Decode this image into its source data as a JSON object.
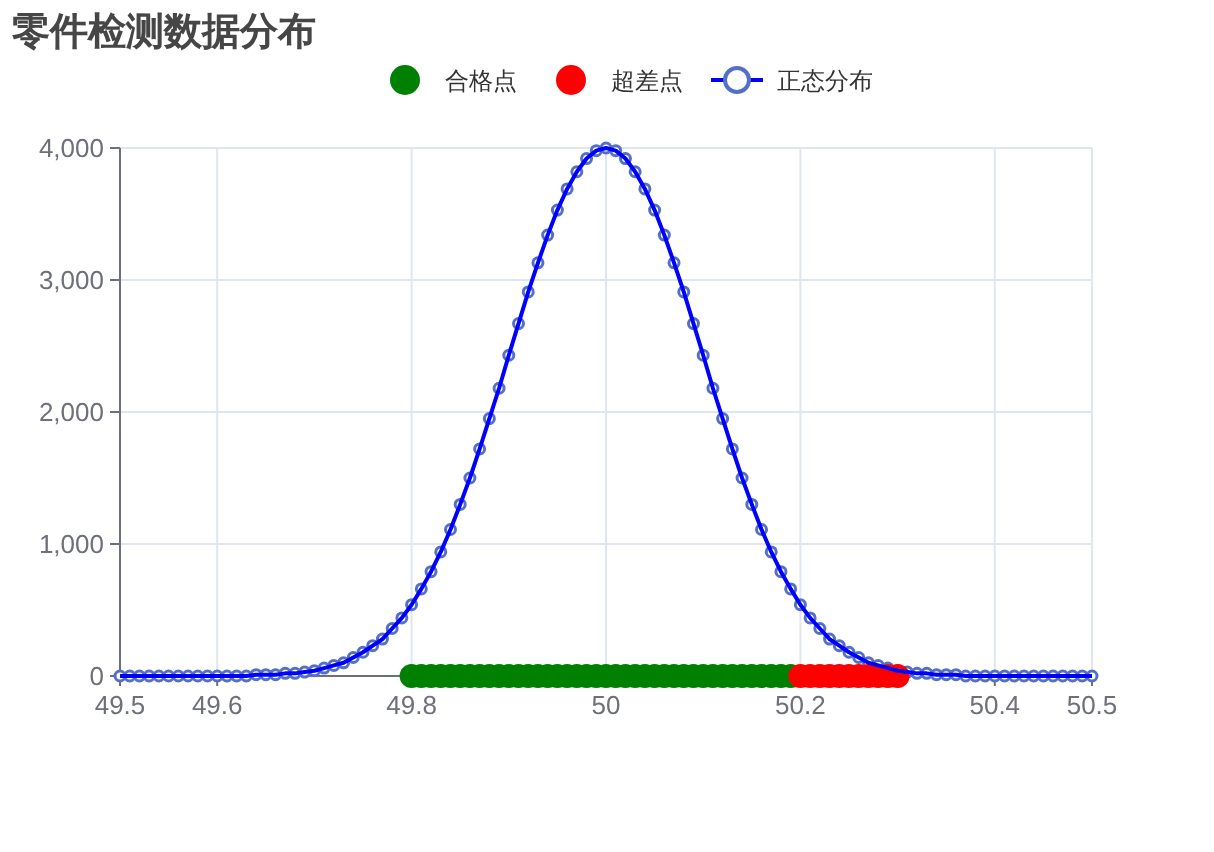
{
  "chart_data": {
    "type": "scatter",
    "title": "零件检测数据分布",
    "xlim": [
      49.5,
      50.5
    ],
    "xticks": [
      49.5,
      49.6,
      49.8,
      50,
      50.2,
      50.4,
      50.5
    ],
    "ylim": [
      0,
      4000
    ],
    "yticks": [
      0,
      {
        "value": 1000,
        "label": "1,000"
      },
      {
        "value": 2000,
        "label": "2,000"
      },
      {
        "value": 3000,
        "label": "3,000"
      },
      {
        "value": 4000,
        "label": "4,000"
      }
    ],
    "grid": true,
    "legend": "top",
    "series": [
      {
        "name": "合格点",
        "marker": "circle",
        "color": "#008000",
        "x": [
          49.8,
          49.81,
          49.82,
          49.83,
          49.84,
          49.85,
          49.86,
          49.87,
          49.88,
          49.89,
          49.9,
          49.91,
          49.92,
          49.93,
          49.94,
          49.95,
          49.96,
          49.97,
          49.98,
          49.99,
          50,
          50.01,
          50.02,
          50.03,
          50.04,
          50.05,
          50.06,
          50.07,
          50.08,
          50.09,
          50.1,
          50.11,
          50.12,
          50.13,
          50.14,
          50.15,
          50.16,
          50.17,
          50.18,
          50.19
        ],
        "values": [
          0,
          0,
          0,
          0,
          0,
          0,
          0,
          0,
          0,
          0,
          0,
          0,
          0,
          0,
          0,
          0,
          0,
          0,
          0,
          0,
          0,
          0,
          0,
          0,
          0,
          0,
          0,
          0,
          0,
          0,
          0,
          0,
          0,
          0,
          0,
          0,
          0,
          0,
          0,
          0
        ]
      },
      {
        "name": "超差点",
        "marker": "circle",
        "color": "#ff0000",
        "x": [
          50.2,
          50.21,
          50.22,
          50.23,
          50.24,
          50.25,
          50.26,
          50.27,
          50.28,
          50.29,
          50.3
        ],
        "values": [
          0,
          0,
          0,
          0,
          0,
          0,
          0,
          0,
          0,
          0,
          0
        ]
      },
      {
        "name": "正态分布",
        "type": "line",
        "marker": "circle",
        "color": "#0000ff",
        "x": [
          49.5,
          49.51,
          49.52,
          49.53,
          49.54,
          49.55,
          49.56,
          49.57,
          49.58,
          49.59,
          49.6,
          49.61,
          49.62,
          49.63,
          49.64,
          49.65,
          49.66,
          49.67,
          49.68,
          49.69,
          49.7,
          49.71,
          49.72,
          49.73,
          49.74,
          49.75,
          49.76,
          49.77,
          49.78,
          49.79,
          49.8,
          49.81,
          49.82,
          49.83,
          49.84,
          49.85,
          49.86,
          49.87,
          49.88,
          49.89,
          49.9,
          49.91,
          49.92,
          49.93,
          49.94,
          49.95,
          49.96,
          49.97,
          49.98,
          49.99,
          50,
          50.01,
          50.02,
          50.03,
          50.04,
          50.05,
          50.06,
          50.07,
          50.08,
          50.09,
          50.1,
          50.11,
          50.12,
          50.13,
          50.14,
          50.15,
          50.16,
          50.17,
          50.18,
          50.19,
          50.2,
          50.21,
          50.22,
          50.23,
          50.24,
          50.25,
          50.26,
          50.27,
          50.28,
          50.29,
          50.3,
          50.31,
          50.32,
          50.33,
          50.34,
          50.35,
          50.36,
          50.37,
          50.38,
          50.39,
          50.4,
          50.41,
          50.42,
          50.43,
          50.44,
          50.45,
          50.46,
          50.47,
          50.48,
          50.49,
          50.5
        ],
        "values": [
          0,
          0,
          0,
          0,
          0,
          0,
          0,
          0,
          0,
          0,
          0,
          0,
          0,
          0,
          10,
          10,
          10,
          20,
          20,
          30,
          40,
          60,
          80,
          100,
          140,
          180,
          230,
          280,
          360,
          440,
          540,
          660,
          790,
          940,
          1110,
          1300,
          1500,
          1720,
          1950,
          2180,
          2430,
          2670,
          2910,
          3130,
          3340,
          3530,
          3690,
          3820,
          3920,
          3980,
          4000,
          3980,
          3920,
          3820,
          3690,
          3530,
          3340,
          3130,
          2910,
          2670,
          2430,
          2180,
          1950,
          1720,
          1500,
          1300,
          1110,
          940,
          790,
          660,
          540,
          440,
          360,
          280,
          230,
          180,
          140,
          100,
          80,
          60,
          40,
          30,
          20,
          20,
          10,
          10,
          10,
          0,
          0,
          0,
          0,
          0,
          0,
          0,
          0,
          0,
          0,
          0,
          0,
          0,
          0
        ]
      }
    ]
  }
}
